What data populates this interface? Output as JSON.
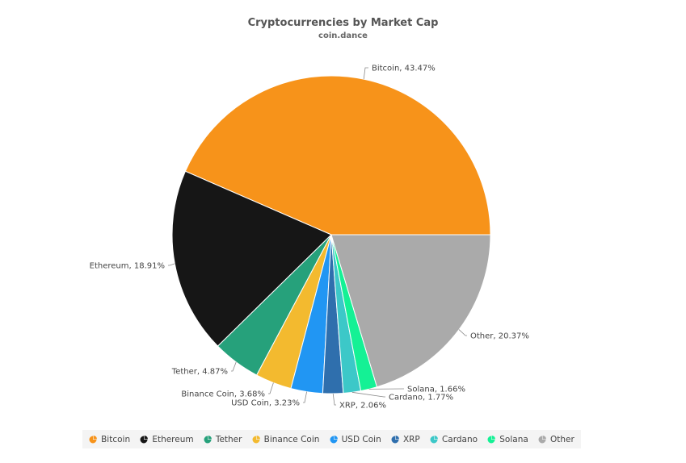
{
  "chart_data": {
    "type": "pie",
    "title": "Cryptocurrencies by Market Cap",
    "subtitle": "coin.dance",
    "legend_position": "bottom",
    "slices": [
      {
        "name": "Bitcoin",
        "value": 43.47,
        "label": "Bitcoin, 43.47%",
        "color": "#f7931a"
      },
      {
        "name": "Ethereum",
        "value": 18.91,
        "label": "Ethereum, 18.91%",
        "color": "#161616"
      },
      {
        "name": "Tether",
        "value": 4.87,
        "label": "Tether, 4.87%",
        "color": "#26a17b"
      },
      {
        "name": "Binance Coin",
        "value": 3.68,
        "label": "Binance Coin, 3.68%",
        "color": "#f3ba2f"
      },
      {
        "name": "USD Coin",
        "value": 3.23,
        "label": "USD Coin, 3.23%",
        "color": "#2196f3"
      },
      {
        "name": "XRP",
        "value": 2.06,
        "label": "XRP, 2.06%",
        "color": "#2f6fad"
      },
      {
        "name": "Cardano",
        "value": 1.77,
        "label": "Cardano, 1.77%",
        "color": "#3cc8c8"
      },
      {
        "name": "Solana",
        "value": 1.66,
        "label": "Solana, 1.66%",
        "color": "#14f195"
      },
      {
        "name": "Other",
        "value": 20.37,
        "label": "Other, 20.37%",
        "color": "#aaaaaa"
      }
    ]
  }
}
